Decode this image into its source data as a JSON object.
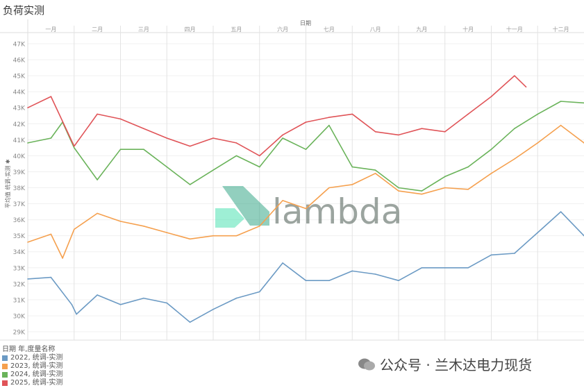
{
  "title": "负荷实测",
  "watermark": {
    "logo_text": "lambda",
    "wechat_text": "公众号 · 兰木达电力现货"
  },
  "legend": {
    "title": "日期 年,度量名称",
    "items": [
      "2022, 统调-实测",
      "2023, 统调-实测",
      "2024, 统调-实测",
      "2025, 统调-实测"
    ]
  },
  "chart_data": {
    "type": "line",
    "title": "负荷实测",
    "xlabel": "日期",
    "ylabel": "平均值 统调-实测",
    "categories": [
      "一月",
      "二月",
      "三月",
      "四月",
      "五月",
      "六月",
      "七月",
      "八月",
      "九月",
      "十月",
      "十一月",
      "十二月"
    ],
    "yticks": [
      "29K",
      "30K",
      "31K",
      "32K",
      "33K",
      "34K",
      "35K",
      "36K",
      "37K",
      "38K",
      "39K",
      "40K",
      "41K",
      "42K",
      "43K",
      "44K",
      "45K",
      "46K",
      "47K"
    ],
    "ylim": [
      29,
      47
    ],
    "x_unit": "month (0 = Jan 1, 12 = Dec 31)",
    "grid": true,
    "legend_position": "bottom-left",
    "series": [
      {
        "name": "2022, 统调-实测",
        "color": "#6b9ac4",
        "x": [
          0,
          0.5,
          0.95,
          1.05,
          1.5,
          2,
          2.5,
          3,
          3.5,
          4,
          4.5,
          5,
          5.5,
          6,
          6.5,
          7,
          7.5,
          8,
          8.5,
          9,
          9.5,
          10,
          10.5,
          11,
          11.5,
          12
        ],
        "values": [
          32.3,
          32.4,
          30.7,
          30.1,
          31.3,
          30.7,
          31.1,
          30.8,
          29.6,
          30.4,
          31.1,
          31.5,
          33.3,
          32.2,
          32.2,
          32.8,
          32.6,
          32.2,
          33.0,
          33.0,
          33.0,
          33.8,
          33.9,
          35.2,
          36.5,
          35.0
        ]
      },
      {
        "name": "2023, 统调-实测",
        "color": "#f5a04e",
        "x": [
          0,
          0.5,
          0.75,
          1,
          1.5,
          2,
          2.5,
          3,
          3.5,
          4,
          4.5,
          5,
          5.5,
          6,
          6.5,
          7,
          7.5,
          8,
          8.5,
          9,
          9.5,
          10,
          10.5,
          11,
          11.5,
          12
        ],
        "values": [
          34.6,
          35.1,
          33.6,
          35.4,
          36.4,
          35.9,
          35.6,
          35.2,
          34.8,
          35.0,
          35.0,
          35.6,
          37.2,
          36.7,
          38.0,
          38.2,
          38.9,
          37.8,
          37.6,
          38.0,
          37.9,
          38.9,
          39.8,
          40.8,
          41.9,
          40.8
        ]
      },
      {
        "name": "2024, 统调-实测",
        "color": "#6ab35a",
        "x": [
          0,
          0.5,
          0.75,
          1,
          1.5,
          2,
          2.5,
          3,
          3.5,
          4,
          4.5,
          5,
          5.5,
          6,
          6.5,
          7,
          7.5,
          8,
          8.5,
          9,
          9.5,
          10,
          10.5,
          11,
          11.5,
          12
        ],
        "values": [
          40.8,
          41.1,
          42.1,
          40.5,
          38.5,
          40.4,
          40.4,
          39.3,
          38.2,
          39.1,
          40.0,
          39.3,
          41.1,
          40.4,
          41.9,
          39.3,
          39.1,
          38.0,
          37.8,
          38.7,
          39.3,
          40.4,
          41.7,
          42.6,
          43.4,
          43.3
        ]
      },
      {
        "name": "2025, 统调-实测",
        "color": "#e05458",
        "x": [
          0,
          0.5,
          1,
          1.5,
          2,
          2.5,
          3,
          3.5,
          4,
          4.5,
          5,
          5.5,
          6,
          6.5,
          7,
          7.5,
          8,
          8.5,
          9,
          9.5,
          10,
          10.5,
          10.75
        ],
        "values": [
          43.0,
          43.7,
          40.6,
          42.6,
          42.3,
          41.7,
          41.1,
          40.6,
          41.1,
          40.8,
          40.0,
          41.3,
          42.1,
          42.4,
          42.6,
          41.5,
          41.3,
          41.7,
          41.5,
          42.6,
          43.7,
          45.0,
          44.3
        ]
      }
    ]
  }
}
